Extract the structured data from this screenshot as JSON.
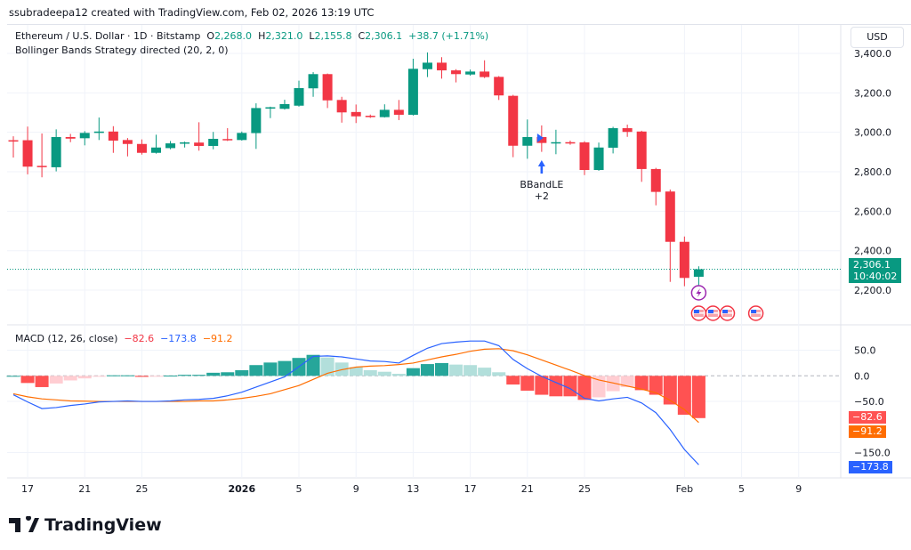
{
  "credit": "ssubradeepa12 created with TradingView.com, Feb 02, 2026 13:19 UTC",
  "symbol": {
    "title": "Ethereum / U.S. Dollar · 1D · Bitstamp",
    "open_label": "O",
    "open": "2,268.0",
    "high_label": "H",
    "high": "2,321.0",
    "low_label": "L",
    "low": "2,155.8",
    "close_label": "C",
    "close": "2,306.1",
    "change": "+38.7 (+1.71%)"
  },
  "strategy_label": "Bollinger Bands Strategy directed (20, 2, 0)",
  "currency_button": "USD",
  "price_axis": {
    "ticks": [
      "3,400.0",
      "3,200.0",
      "3,000.0",
      "2,800.0",
      "2,600.0",
      "2,400.0",
      "2,200.0"
    ],
    "tick_values": [
      3400,
      3200,
      3000,
      2800,
      2600,
      2400,
      2200
    ],
    "last_price": "2,306.1",
    "countdown": "10:40:02"
  },
  "signal_marker": {
    "label": "BBandLE",
    "qty": "+2"
  },
  "macd": {
    "title": "MACD (12, 26, close)",
    "hist_value": "−82.6",
    "macd_value": "−173.8",
    "signal_value": "−91.2",
    "ticks": [
      "50.0",
      "0.0",
      "−50.0",
      "−150.0"
    ],
    "tick_values": [
      50,
      0,
      -50,
      -150
    ]
  },
  "time_axis": [
    "17",
    "21",
    "25",
    "2026",
    "5",
    "9",
    "13",
    "17",
    "21",
    "25",
    "Feb",
    "5",
    "9"
  ],
  "colors": {
    "up": "#089981",
    "down": "#f23645",
    "macd": "#2962ff",
    "signal": "#ff6d00",
    "hist_up_strong": "#26a69a",
    "hist_up_weak": "#b2dfdb",
    "hist_down_strong": "#ff5252",
    "hist_down_weak": "#ffcdd2"
  },
  "icons": {
    "event": "lightning-icon",
    "economic": "us-flag-icon"
  },
  "brand": "TradingView",
  "chart_data": {
    "type": "candlestick",
    "ohlc": [
      [
        2960,
        2980,
        2872,
        2955
      ],
      [
        2960,
        3029,
        2787,
        2826
      ],
      [
        2830,
        2994,
        2772,
        2826
      ],
      [
        2823,
        3015,
        2802,
        2976
      ],
      [
        2976,
        2992,
        2950,
        2968
      ],
      [
        2970,
        3006,
        2934,
        2997
      ],
      [
        2997,
        3075,
        2961,
        3004
      ],
      [
        3004,
        3031,
        2896,
        2958
      ],
      [
        2961,
        2971,
        2878,
        2941
      ],
      [
        2941,
        2964,
        2887,
        2896
      ],
      [
        2896,
        2988,
        2892,
        2923
      ],
      [
        2920,
        2956,
        2914,
        2944
      ],
      [
        2945,
        2953,
        2923,
        2949
      ],
      [
        2948,
        3051,
        2907,
        2931
      ],
      [
        2931,
        3002,
        2914,
        2967
      ],
      [
        2966,
        3021,
        2956,
        2961
      ],
      [
        2961,
        3004,
        2958,
        2997
      ],
      [
        2996,
        3147,
        2916,
        3123
      ],
      [
        3121,
        3130,
        3072,
        3127
      ],
      [
        3119,
        3165,
        3115,
        3143
      ],
      [
        3135,
        3262,
        3130,
        3224
      ],
      [
        3223,
        3305,
        3180,
        3295
      ],
      [
        3295,
        3298,
        3123,
        3162
      ],
      [
        3164,
        3180,
        3049,
        3101
      ],
      [
        3103,
        3141,
        3047,
        3081
      ],
      [
        3084,
        3090,
        3073,
        3080
      ],
      [
        3077,
        3142,
        3075,
        3114
      ],
      [
        3114,
        3164,
        3062,
        3089
      ],
      [
        3089,
        3373,
        3085,
        3322
      ],
      [
        3320,
        3405,
        3280,
        3353
      ],
      [
        3353,
        3381,
        3272,
        3314
      ],
      [
        3314,
        3320,
        3253,
        3295
      ],
      [
        3293,
        3318,
        3287,
        3308
      ],
      [
        3308,
        3365,
        3275,
        3280
      ],
      [
        3281,
        3285,
        3164,
        3187
      ],
      [
        3185,
        3190,
        2874,
        2932
      ],
      [
        2932,
        3065,
        2866,
        2976
      ],
      [
        2976,
        3035,
        2901,
        2946
      ],
      [
        2946,
        3013,
        2889,
        2950
      ],
      [
        2950,
        2958,
        2937,
        2945
      ],
      [
        2949,
        2955,
        2783,
        2809
      ],
      [
        2809,
        2948,
        2805,
        2923
      ],
      [
        2922,
        3028,
        2893,
        3021
      ],
      [
        3021,
        3039,
        2977,
        3002
      ],
      [
        3004,
        3008,
        2749,
        2814
      ],
      [
        2814,
        2820,
        2630,
        2698
      ],
      [
        2700,
        2710,
        2242,
        2445
      ],
      [
        2445,
        2472,
        2220,
        2262
      ],
      [
        2268.0,
        2321.0,
        2155.8,
        2306.1
      ]
    ],
    "macd_line": [
      -37,
      -51,
      -64,
      -62,
      -58,
      -55,
      -51,
      -50,
      -49,
      -50,
      -50,
      -49,
      -47,
      -46,
      -44,
      -39,
      -32,
      -22,
      -12,
      -2,
      18,
      38,
      39,
      37,
      33,
      29,
      28,
      25,
      40,
      54,
      63,
      66,
      68,
      68,
      59,
      32,
      14,
      -1,
      -13,
      -25,
      -44,
      -49,
      -45,
      -42,
      -53,
      -72,
      -105,
      -144,
      -173.8
    ],
    "signal_line": [
      -35,
      -41,
      -45,
      -47,
      -49,
      -49.5,
      -50,
      -50,
      -50,
      -50,
      -50,
      -50,
      -50,
      -49,
      -49,
      -47,
      -44,
      -40,
      -35,
      -27,
      -19,
      -7,
      5,
      12,
      17,
      19,
      20,
      22,
      25,
      31,
      37,
      42,
      48,
      52,
      53,
      49,
      41,
      31,
      21,
      11,
      0.5,
      -8,
      -14,
      -20,
      -26,
      -33,
      -48,
      -66,
      -91.2
    ],
    "histogram": [
      0,
      -14,
      -22,
      -15,
      -9,
      -5,
      -1,
      1,
      1,
      -2,
      -1,
      0.5,
      2,
      2,
      6,
      7,
      11,
      21,
      26,
      29,
      35,
      41,
      36,
      26,
      17,
      11,
      8,
      4,
      15,
      23,
      25,
      22,
      21,
      16,
      7,
      -17,
      -29,
      -37,
      -40,
      -40,
      -47,
      -42,
      -30,
      -22,
      -28,
      -37,
      -56,
      -76,
      -82.6
    ],
    "price_ylim": [
      2100,
      3450
    ],
    "macd_ylim": [
      -190,
      80
    ],
    "grid": true
  }
}
